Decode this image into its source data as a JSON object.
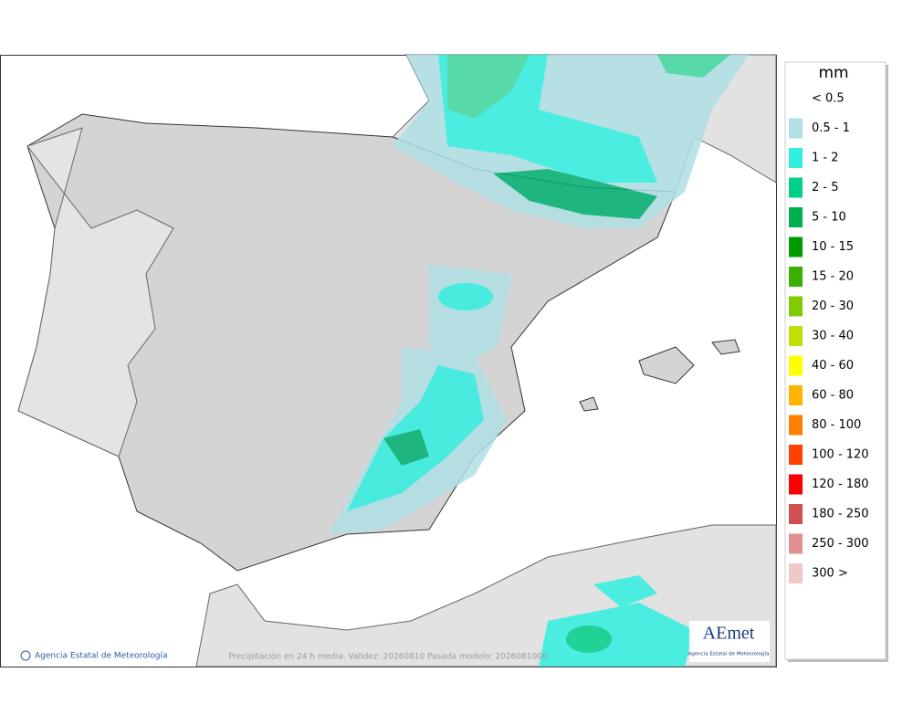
{
  "legend": {
    "title": "mm",
    "items": [
      {
        "label": "< 0.5",
        "color": "#ffffff"
      },
      {
        "label": "0.5 - 1",
        "color": "#b0e0e6"
      },
      {
        "label": "1 - 2",
        "color": "#30f0e0"
      },
      {
        "label": "2 - 5",
        "color": "#00d08a"
      },
      {
        "label": "5 - 10",
        "color": "#00b050"
      },
      {
        "label": "10 - 15",
        "color": "#009a00"
      },
      {
        "label": "15 - 20",
        "color": "#3cb000"
      },
      {
        "label": "20 - 30",
        "color": "#80cc00"
      },
      {
        "label": "30 - 40",
        "color": "#c0e000"
      },
      {
        "label": "40 - 60",
        "color": "#ffff00"
      },
      {
        "label": "60 - 80",
        "color": "#ffb400"
      },
      {
        "label": "80 - 100",
        "color": "#ff7f00"
      },
      {
        "label": "100 - 120",
        "color": "#ff4000"
      },
      {
        "label": "120 - 180",
        "color": "#ff0000"
      },
      {
        "label": "180 - 250",
        "color": "#d05050"
      },
      {
        "label": "250 - 300",
        "color": "#e09090"
      },
      {
        "label": "300 >",
        "color": "#f0c8c8"
      }
    ]
  },
  "footer": {
    "agency": "Agencia Estatal de Meteorología",
    "caption": "Precipitación en 24 h media. Validez: 20260810 Pasada modelo: 2026081000"
  },
  "logo": {
    "name": "AEmet",
    "subtitle": "Agencia Estatal de Meteorología"
  }
}
